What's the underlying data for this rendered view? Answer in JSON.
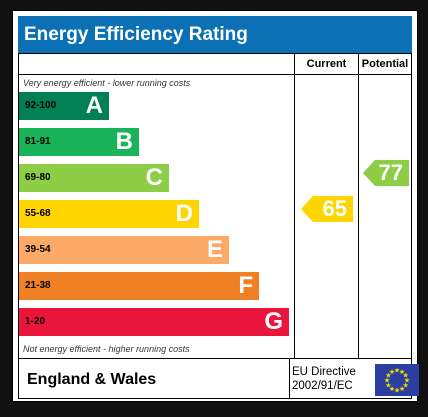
{
  "title": "Energy Efficiency Rating",
  "columns": {
    "current": "Current",
    "potential": "Potential"
  },
  "top_caption": "Very energy efficient - lower running costs",
  "bottom_caption": "Not energy efficient - higher running costs",
  "bands": [
    {
      "range": "92-100",
      "letter": "A",
      "color": "#008054"
    },
    {
      "range": "81-91",
      "letter": "B",
      "color": "#19b459"
    },
    {
      "range": "69-80",
      "letter": "C",
      "color": "#8dce46"
    },
    {
      "range": "55-68",
      "letter": "D",
      "color": "#ffd500"
    },
    {
      "range": "39-54",
      "letter": "E",
      "color": "#fcaa65"
    },
    {
      "range": "21-38",
      "letter": "F",
      "color": "#ef8023"
    },
    {
      "range": "1-20",
      "letter": "G",
      "color": "#e9153b"
    }
  ],
  "current_rating": {
    "value": "65",
    "band": "D",
    "color": "#ffd500"
  },
  "potential_rating": {
    "value": "77",
    "band": "C",
    "color": "#8dce46"
  },
  "footer": {
    "region": "England & Wales",
    "directive_line1": "EU Directive",
    "directive_line2": "2002/91/EC"
  },
  "colors": {
    "title_bar": "#0c70b4",
    "eu_flag": "#2b3fa0",
    "eu_stars": "#ffdd00"
  }
}
